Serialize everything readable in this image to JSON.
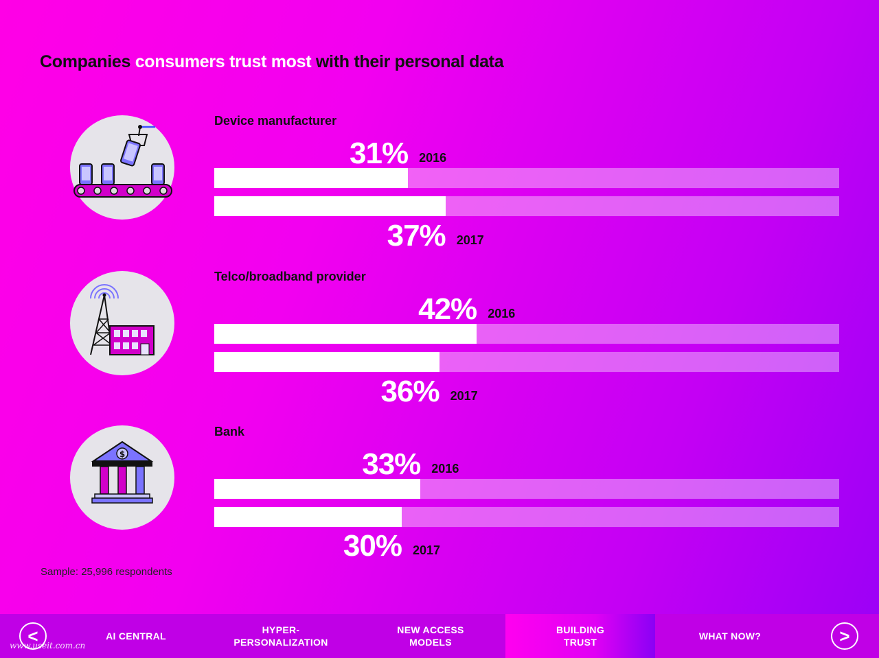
{
  "title": {
    "part1": "Companies ",
    "part2": "consumers trust most",
    "part3": " with their personal data"
  },
  "chart_data": {
    "type": "bar",
    "title": "Companies consumers trust most with their personal data",
    "xlim": [
      0,
      100
    ],
    "categories": [
      "Device manufacturer",
      "Telco/broadband provider",
      "Bank"
    ],
    "series": [
      {
        "name": "2016",
        "values": [
          31,
          42,
          33
        ]
      },
      {
        "name": "2017",
        "values": [
          37,
          36,
          30
        ]
      }
    ],
    "value_labels": {
      "2016": [
        "31%",
        "42%",
        "33%"
      ],
      "2017": [
        "37%",
        "36%",
        "30%"
      ]
    },
    "colors": {
      "fill": "#ffffff",
      "track": "rgba(255,255,255,0.38)"
    }
  },
  "icons": [
    "conveyor-phones-icon",
    "cell-tower-icon",
    "bank-icon"
  ],
  "sample": "Sample: 25,996 respondents",
  "nav": {
    "prev": "<",
    "next": ">",
    "items": [
      {
        "label": "AI CENTRAL",
        "active": false
      },
      {
        "label": "HYPER-\nPERSONALIZATION",
        "active": false
      },
      {
        "label": "NEW ACCESS\nMODELS",
        "active": false
      },
      {
        "label": "BUILDING\nTRUST",
        "active": true
      },
      {
        "label": "WHAT NOW?",
        "active": false
      }
    ]
  },
  "watermark": "www.useit.com.cn"
}
